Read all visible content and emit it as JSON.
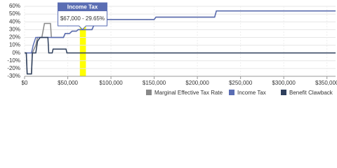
{
  "chart_data": {
    "type": "line",
    "xlim": [
      0,
      360000
    ],
    "ylim": [
      -30,
      60
    ],
    "xticks": [
      {
        "value": 0,
        "label": "$0"
      },
      {
        "value": 50000,
        "label": "$50,000"
      },
      {
        "value": 100000,
        "label": "$100,000"
      },
      {
        "value": 150000,
        "label": "$150,000"
      },
      {
        "value": 200000,
        "label": "$200,000"
      },
      {
        "value": 250000,
        "label": "$250,000"
      },
      {
        "value": 300000,
        "label": "$300,000"
      },
      {
        "value": 350000,
        "label": "$350,000"
      }
    ],
    "yticks": [
      {
        "value": 60,
        "label": "60%"
      },
      {
        "value": 50,
        "label": "50%"
      },
      {
        "value": 40,
        "label": "40%"
      },
      {
        "value": 30,
        "label": "30%"
      },
      {
        "value": 20,
        "label": "20%"
      },
      {
        "value": 10,
        "label": "10%"
      },
      {
        "value": 0,
        "label": "0%"
      },
      {
        "value": -10,
        "label": "-10%"
      },
      {
        "value": -20,
        "label": "-20%"
      },
      {
        "value": -30,
        "label": "-30%"
      }
    ],
    "grid": true,
    "legend": "bottom-right",
    "highlight_band": {
      "from": 64000,
      "to": 71000,
      "color": "#ffff00"
    },
    "tooltip": {
      "title": "Income Tax",
      "text": "$67,000 - 29.65%",
      "x": 67000,
      "y": 29.65
    },
    "series": [
      {
        "name": "Marginal Effective Tax Rate",
        "color": "#888888",
        "x": [
          0,
          2000,
          3000,
          8000,
          9000,
          13000,
          15000,
          20000,
          23000,
          30000,
          31000,
          45000,
          47000,
          52000,
          55000,
          60000,
          62000,
          78000,
          80000,
          88000,
          90000,
          150000,
          152000,
          220000,
          222000,
          360000
        ],
        "values": [
          0,
          0,
          -27,
          -27,
          0,
          10,
          20,
          20,
          38,
          38,
          20,
          20,
          25,
          25,
          28,
          28,
          30,
          30,
          35,
          35,
          43,
          43,
          46,
          46,
          54,
          54
        ]
      },
      {
        "name": "Income Tax",
        "color": "#5a6db3",
        "x": [
          0,
          8000,
          10000,
          13000,
          45000,
          47000,
          52000,
          55000,
          60000,
          62000,
          78000,
          80000,
          88000,
          90000,
          150000,
          152000,
          220000,
          222000,
          360000
        ],
        "values": [
          0,
          0,
          10,
          20,
          20,
          25,
          25,
          28,
          28,
          30,
          30,
          35,
          35,
          43,
          43,
          46,
          46,
          54,
          54
        ]
      },
      {
        "name": "Benefit Clawback",
        "color": "#2e3f5c",
        "x": [
          0,
          2000,
          3000,
          8000,
          9000,
          13000,
          15000,
          18000,
          27000,
          28000,
          32000,
          33000,
          48000,
          49000,
          360000
        ],
        "values": [
          0,
          0,
          -27,
          -27,
          0,
          0,
          15,
          20,
          20,
          0,
          0,
          5,
          5,
          0,
          0
        ]
      }
    ]
  }
}
